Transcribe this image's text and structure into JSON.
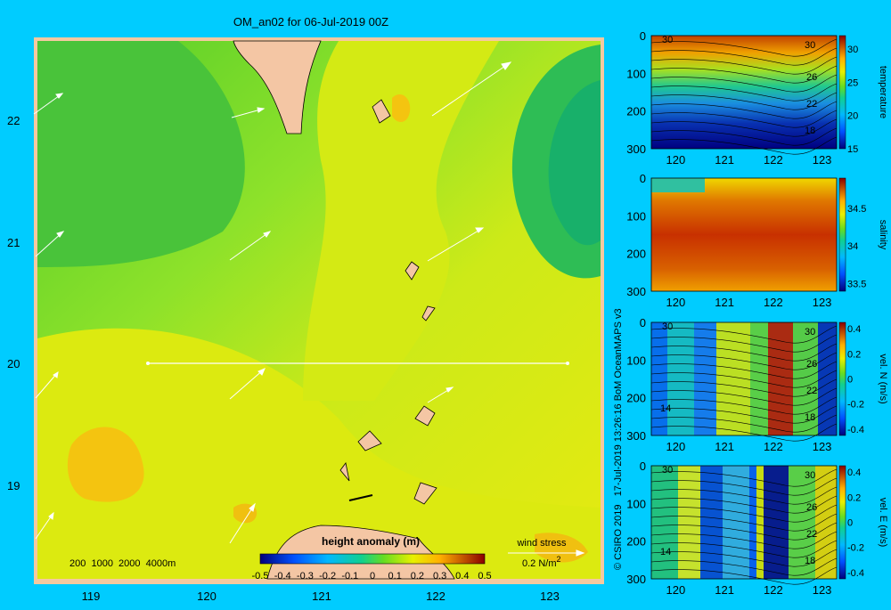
{
  "colors": {
    "background": "#00ccff",
    "frame": "#f5c9a0",
    "land": "#f4c6a4"
  },
  "map": {
    "title": "OM_an02 for 06-Jul-2019 00Z",
    "lon_ticks": [
      "119",
      "120",
      "121",
      "122",
      "123"
    ],
    "lat_ticks": [
      "22",
      "21",
      "20",
      "19"
    ],
    "depth_legend": "200  1000  2000  4000m",
    "colorbar": {
      "title": "height anomaly (m)",
      "ticks": [
        "-0.5",
        "-0.4",
        "-0.3",
        "-0.2",
        "-0.1",
        "0",
        "0.1",
        "0.2",
        "0.3",
        "0.4",
        "0.5"
      ],
      "range": [
        -0.5,
        0.5
      ]
    },
    "wind_label": "wind stress",
    "wind_scale": "0.2 N/m",
    "wind_scale_sup": "2"
  },
  "credit": "© CSIRO 2019   17-Jul-2019 13:26:16 BoM OceanMAPS v3",
  "chart_data": [
    {
      "type": "heatmap",
      "name": "sea surface height anomaly map",
      "xlim": [
        118.5,
        123.5
      ],
      "ylim": [
        18.3,
        22.7
      ],
      "zlim": [
        -0.5,
        0.5
      ],
      "section_line": {
        "lon": [
          119.5,
          123.3
        ],
        "lat": [
          20.0,
          20.0
        ]
      },
      "wind_arrows_count": 18
    },
    {
      "type": "heatmap",
      "name": "temperature section",
      "colorbar_label": "temperature",
      "x_ticks": [
        "120",
        "121",
        "122",
        "123"
      ],
      "y_ticks": [
        "0",
        "100",
        "200",
        "300"
      ],
      "cbar_ticks": [
        "30",
        "25",
        "20",
        "15"
      ],
      "contour_labels": [
        "30",
        "30",
        "26",
        "22",
        "18"
      ],
      "xlim": [
        119.5,
        123.3
      ],
      "ylim": [
        0,
        300
      ],
      "zlim": [
        15,
        32
      ]
    },
    {
      "type": "heatmap",
      "name": "salinity section",
      "colorbar_label": "salinity",
      "x_ticks": [
        "120",
        "121",
        "122",
        "123"
      ],
      "y_ticks": [
        "0",
        "100",
        "200",
        "300"
      ],
      "cbar_ticks": [
        "34.5",
        "34",
        "33.5"
      ],
      "xlim": [
        119.5,
        123.3
      ],
      "ylim": [
        0,
        300
      ],
      "zlim": [
        33.4,
        34.9
      ]
    },
    {
      "type": "heatmap",
      "name": "northward velocity section",
      "colorbar_label": "vel. N  (m/s)",
      "x_ticks": [
        "120",
        "121",
        "122",
        "123"
      ],
      "y_ticks": [
        "0",
        "100",
        "200",
        "300"
      ],
      "cbar_ticks": [
        "0.4",
        "0.2",
        "0",
        "-0.2",
        "-0.4"
      ],
      "contour_labels": [
        "30",
        "30",
        "26",
        "22",
        "18",
        "14"
      ],
      "xlim": [
        119.5,
        123.3
      ],
      "ylim": [
        0,
        300
      ],
      "zlim": [
        -0.45,
        0.45
      ]
    },
    {
      "type": "heatmap",
      "name": "eastward velocity section",
      "colorbar_label": "vel. E  (m/s)",
      "x_ticks": [
        "120",
        "121",
        "122",
        "123"
      ],
      "y_ticks": [
        "0",
        "100",
        "200",
        "300"
      ],
      "cbar_ticks": [
        "0.4",
        "0.2",
        "0",
        "-0.2",
        "-0.4"
      ],
      "contour_labels": [
        "30",
        "30",
        "26",
        "22",
        "18",
        "14"
      ],
      "xlim": [
        119.5,
        123.3
      ],
      "ylim": [
        0,
        300
      ],
      "zlim": [
        -0.45,
        0.45
      ]
    }
  ]
}
